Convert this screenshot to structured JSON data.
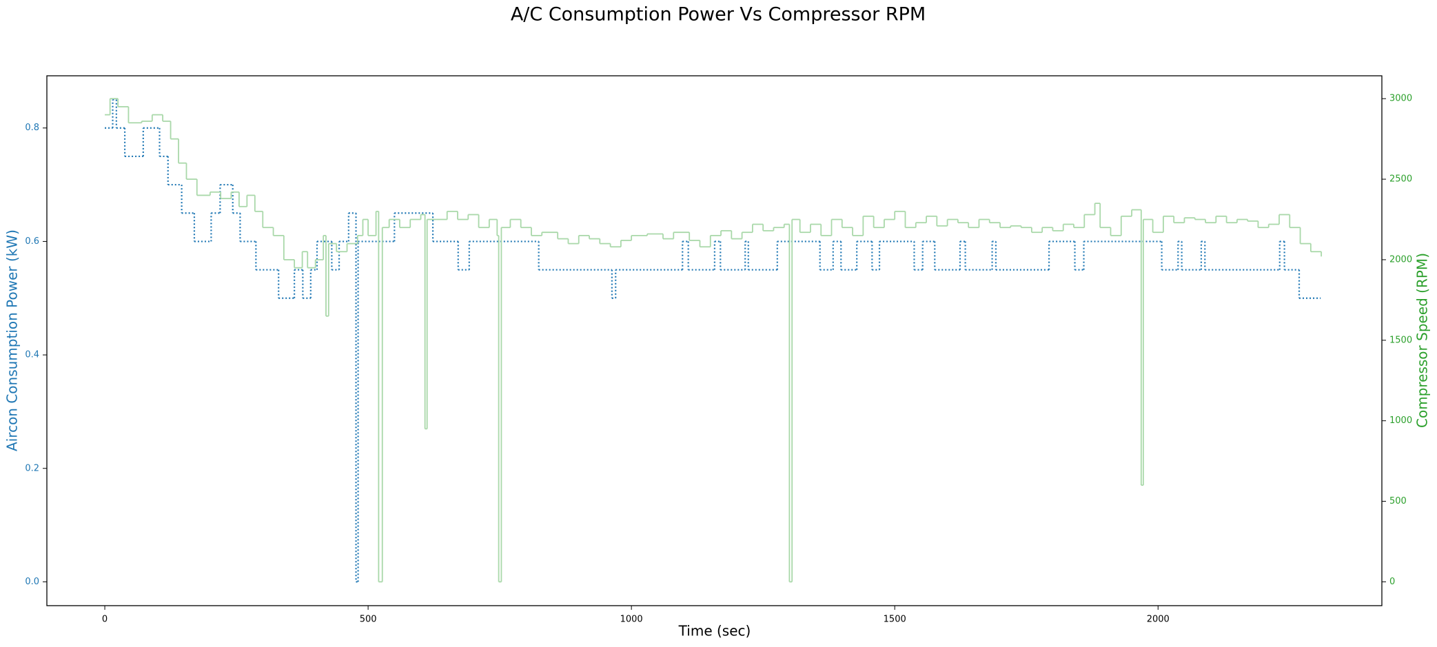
{
  "chart_data": {
    "type": "line",
    "step": "post",
    "title": "A/C Consumption Power Vs Compressor RPM",
    "x_label": "Time (sec)",
    "y_label": "Aircon Consumption Power (kW)",
    "y2_label": "Compressor Speed (RPM)",
    "xlim": [
      -110,
      2425
    ],
    "xticks": [
      0,
      500,
      1000,
      1500,
      2000
    ],
    "ylim": [
      -0.042,
      0.892
    ],
    "yticks": [
      {
        "value": 0,
        "label": "0.0"
      },
      0.2,
      0.4,
      0.6,
      0.8
    ],
    "y2lim": [
      -148,
      3142
    ],
    "y2ticks": [
      0,
      500,
      1000,
      1500,
      2000,
      2500,
      3000
    ],
    "y_color": "#1f77b4",
    "y2_color": "#2ca02c",
    "grid": false,
    "series": [
      {
        "axis": "y",
        "color": "#1f77b4",
        "dash": "dotted",
        "x": [
          0,
          15,
          22,
          38,
          73,
          104,
          120,
          146,
          170,
          202,
          219,
          243,
          257,
          287,
          330,
          360,
          376,
          391,
          403,
          431,
          445,
          463,
          477,
          481,
          550,
          623,
          671,
          692,
          824,
          963,
          970,
          1097,
          1108,
          1158,
          1169,
          1216,
          1222,
          1277,
          1358,
          1383,
          1398,
          1428,
          1457,
          1471,
          1537,
          1553,
          1576,
          1624,
          1634,
          1685,
          1692,
          1793,
          1842,
          1859,
          2007,
          2038,
          2045,
          2082,
          2089,
          2231,
          2240,
          2268,
          2308
        ],
        "values": [
          0.8,
          0.85,
          0.8,
          0.75,
          0.8,
          0.75,
          0.7,
          0.65,
          0.6,
          0.65,
          0.7,
          0.65,
          0.6,
          0.55,
          0.5,
          0.55,
          0.5,
          0.55,
          0.6,
          0.55,
          0.6,
          0.65,
          0,
          0.6,
          0.65,
          0.6,
          0.55,
          0.6,
          0.55,
          0.5,
          0.55,
          0.6,
          0.55,
          0.6,
          0.55,
          0.6,
          0.55,
          0.6,
          0.55,
          0.6,
          0.55,
          0.6,
          0.55,
          0.6,
          0.55,
          0.6,
          0.55,
          0.6,
          0.55,
          0.6,
          0.55,
          0.6,
          0.55,
          0.6,
          0.55,
          0.6,
          0.55,
          0.6,
          0.55,
          0.6,
          0.55,
          0.5,
          0.5
        ]
      },
      {
        "axis": "y2",
        "color": "#a9d8a9",
        "x": [
          0,
          10,
          25,
          45,
          70,
          90,
          110,
          125,
          140,
          155,
          175,
          200,
          220,
          240,
          255,
          270,
          285,
          300,
          320,
          340,
          360,
          375,
          385,
          400,
          415,
          420,
          425,
          440,
          460,
          480,
          490,
          500,
          515,
          520,
          527,
          540,
          560,
          580,
          600,
          608,
          612,
          630,
          650,
          670,
          690,
          710,
          730,
          745,
          748,
          753,
          770,
          790,
          810,
          830,
          860,
          880,
          900,
          920,
          940,
          960,
          980,
          1000,
          1030,
          1060,
          1080,
          1110,
          1130,
          1150,
          1170,
          1190,
          1210,
          1230,
          1250,
          1270,
          1290,
          1300,
          1305,
          1320,
          1340,
          1360,
          1380,
          1400,
          1420,
          1440,
          1460,
          1480,
          1500,
          1520,
          1540,
          1560,
          1580,
          1600,
          1620,
          1640,
          1660,
          1680,
          1700,
          1720,
          1740,
          1760,
          1780,
          1800,
          1820,
          1840,
          1860,
          1880,
          1890,
          1910,
          1930,
          1950,
          1968,
          1972,
          1990,
          2010,
          2030,
          2050,
          2070,
          2090,
          2110,
          2130,
          2150,
          2170,
          2190,
          2210,
          2230,
          2250,
          2270,
          2290,
          2310
        ],
        "values": [
          2900,
          3000,
          2950,
          2850,
          2860,
          2900,
          2860,
          2750,
          2600,
          2500,
          2400,
          2420,
          2380,
          2420,
          2330,
          2400,
          2300,
          2200,
          2150,
          2000,
          1950,
          2050,
          1950,
          2000,
          2150,
          1650,
          2100,
          2050,
          2100,
          2150,
          2250,
          2150,
          2300,
          0,
          2200,
          2250,
          2200,
          2250,
          2280,
          950,
          2250,
          2250,
          2300,
          2250,
          2280,
          2200,
          2250,
          2150,
          0,
          2200,
          2250,
          2200,
          2150,
          2170,
          2130,
          2100,
          2150,
          2130,
          2100,
          2080,
          2120,
          2150,
          2160,
          2130,
          2170,
          2120,
          2080,
          2150,
          2180,
          2130,
          2170,
          2220,
          2180,
          2200,
          2220,
          0,
          2250,
          2170,
          2220,
          2150,
          2250,
          2200,
          2150,
          2270,
          2200,
          2250,
          2300,
          2200,
          2230,
          2270,
          2210,
          2250,
          2230,
          2200,
          2250,
          2230,
          2200,
          2210,
          2200,
          2170,
          2200,
          2180,
          2220,
          2200,
          2280,
          2350,
          2200,
          2150,
          2270,
          2310,
          600,
          2250,
          2170,
          2270,
          2230,
          2260,
          2250,
          2230,
          2270,
          2230,
          2250,
          2240,
          2200,
          2220,
          2280,
          2200,
          2100,
          2050,
          2020
        ]
      }
    ]
  }
}
